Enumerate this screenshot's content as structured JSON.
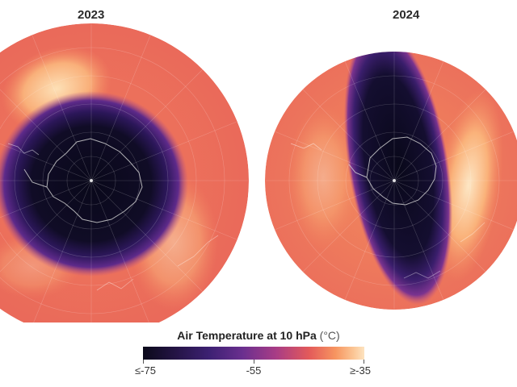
{
  "panels": [
    {
      "year": "2023",
      "vortex": "circular",
      "description_color": "#0b0a1a"
    },
    {
      "year": "2024",
      "vortex": "elongated",
      "description_color": "#0b0a1a"
    }
  ],
  "legend": {
    "title": "Air Temperature at 10 hPa",
    "unit": "(°C)",
    "min_label": "≤-75",
    "mid_label": "-55",
    "max_label": "≥-35",
    "colors": [
      "#0b0a1a",
      "#3d2173",
      "#a83c86",
      "#e35a5a",
      "#f79560",
      "#fde3c0"
    ]
  }
}
